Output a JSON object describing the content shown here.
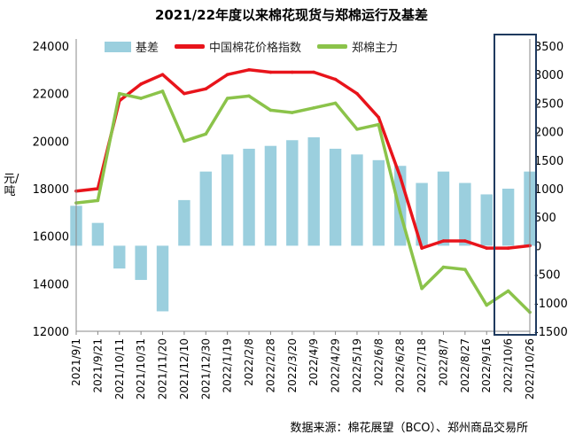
{
  "chart_data": {
    "type": "bar+line",
    "title": "2021/22年度以来棉花现货与郑棉运行及基差",
    "ylabel_left": "元/吨",
    "left_axis": {
      "ticks": [
        12000,
        14000,
        16000,
        18000,
        20000,
        22000,
        24000
      ],
      "range": [
        12000,
        24000
      ]
    },
    "right_axis": {
      "ticks": [
        -1500,
        -1000,
        -500,
        0,
        500,
        1000,
        1500,
        2000,
        2500,
        3000,
        3500
      ],
      "range": [
        -1500,
        3500
      ]
    },
    "x_ticks": [
      "2021/9/1",
      "2021/9/21",
      "2021/10/11",
      "2021/10/31",
      "2021/11/20",
      "2021/12/10",
      "2021/12/30",
      "2022/1/19",
      "2022/2/8",
      "2022/2/28",
      "2022/3/20",
      "2022/4/9",
      "2022/4/29",
      "2022/5/19",
      "2022/6/8",
      "2022/6/28",
      "2022/7/18",
      "2022/8/7",
      "2022/8/27",
      "2022/9/16",
      "2022/10/6",
      "2022/10/26"
    ],
    "series": [
      {
        "name": "基差",
        "axis": "right",
        "color": "#9bcfde",
        "values": [
          700,
          400,
          -400,
          -600,
          -1150,
          800,
          1300,
          1600,
          1700,
          1750,
          1850,
          1900,
          1700,
          1600,
          1500,
          1400,
          1100,
          1300,
          1100,
          900,
          1000,
          1300
        ]
      },
      {
        "name": "中国棉花价格指数",
        "axis": "left",
        "color": "#e8141b",
        "values": [
          17900,
          18000,
          21700,
          22400,
          22800,
          22000,
          22200,
          22800,
          23000,
          22900,
          22900,
          22900,
          22600,
          22000,
          21000,
          18500,
          15500,
          15800,
          15800,
          15500,
          15500,
          15600
        ]
      },
      {
        "name": "郑棉主力",
        "axis": "left",
        "color": "#8bc34a",
        "values": [
          17400,
          17500,
          22000,
          21800,
          22100,
          20000,
          20300,
          21800,
          21900,
          21300,
          21200,
          21400,
          21600,
          20500,
          20700,
          17000,
          13800,
          14700,
          14600,
          13100,
          13700,
          12800
        ]
      }
    ],
    "highlight_range": [
      "2022/10/6",
      "2022/10/26"
    ],
    "legend_position": "top",
    "grid": false
  },
  "footer": {
    "source": "数据来源：棉花展望（BCO）、郑州商品交易所"
  }
}
